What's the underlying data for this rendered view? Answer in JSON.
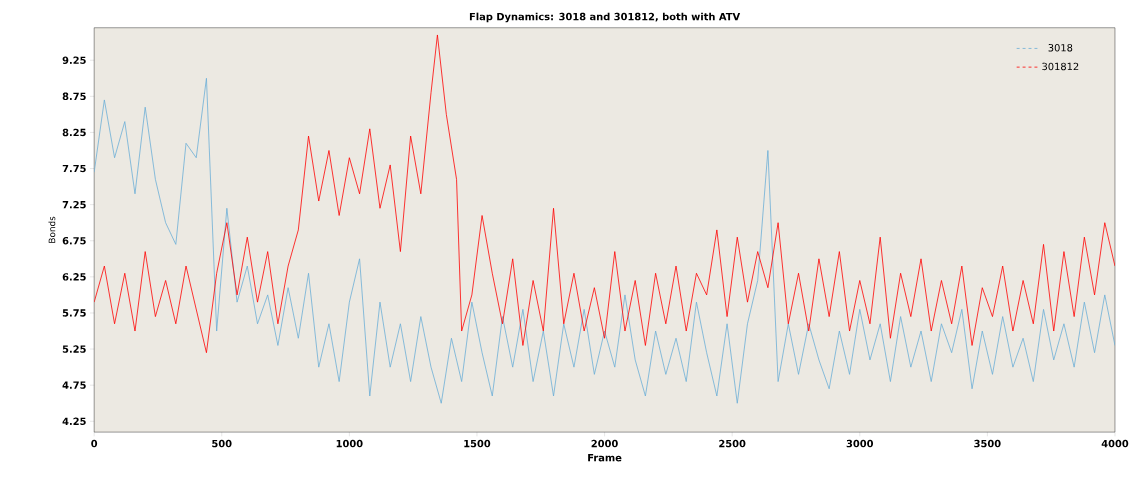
{
  "chart_data": {
    "type": "line",
    "title": "Flap Dynamics: 3018 and 301812, both with ATV",
    "xlabel": "Frame",
    "ylabel": "Bonds",
    "xlim": [
      0,
      4000
    ],
    "ylim": [
      4.1,
      9.7
    ],
    "xticks": [
      0,
      500,
      1000,
      1500,
      2000,
      2500,
      3000,
      3500,
      4000
    ],
    "yticks": [
      4.25,
      4.75,
      5.25,
      5.75,
      6.25,
      6.75,
      7.25,
      7.75,
      8.25,
      8.75,
      9.25
    ],
    "grid": false,
    "legend": "top right",
    "series": [
      {
        "name": "3018",
        "color": "#6baed6",
        "x": [
          0,
          40,
          80,
          120,
          160,
          200,
          240,
          280,
          320,
          360,
          400,
          440,
          480,
          520,
          560,
          600,
          640,
          680,
          720,
          760,
          800,
          840,
          880,
          920,
          960,
          1000,
          1040,
          1080,
          1120,
          1160,
          1200,
          1240,
          1280,
          1320,
          1360,
          1400,
          1440,
          1480,
          1520,
          1560,
          1600,
          1640,
          1680,
          1720,
          1760,
          1800,
          1840,
          1880,
          1920,
          1960,
          2000,
          2040,
          2080,
          2120,
          2160,
          2200,
          2240,
          2280,
          2320,
          2360,
          2400,
          2440,
          2480,
          2520,
          2560,
          2600,
          2640,
          2680,
          2720,
          2760,
          2800,
          2840,
          2880,
          2920,
          2960,
          3000,
          3040,
          3080,
          3120,
          3160,
          3200,
          3240,
          3280,
          3320,
          3360,
          3400,
          3440,
          3480,
          3520,
          3560,
          3600,
          3640,
          3680,
          3720,
          3760,
          3800,
          3840,
          3880,
          3920,
          3960,
          4000
        ],
        "values": [
          7.7,
          8.7,
          7.9,
          8.4,
          7.4,
          8.6,
          7.6,
          7.0,
          6.7,
          8.1,
          7.9,
          9.0,
          5.5,
          7.2,
          5.9,
          6.4,
          5.6,
          6.0,
          5.3,
          6.1,
          5.4,
          6.3,
          5.0,
          5.6,
          4.8,
          5.9,
          6.5,
          4.6,
          5.9,
          5.0,
          5.6,
          4.8,
          5.7,
          5.0,
          4.5,
          5.4,
          4.8,
          5.9,
          5.2,
          4.6,
          5.7,
          5.0,
          5.8,
          4.8,
          5.5,
          4.6,
          5.6,
          5.0,
          5.8,
          4.9,
          5.5,
          5.0,
          6.0,
          5.1,
          4.6,
          5.5,
          4.9,
          5.4,
          4.8,
          5.9,
          5.2,
          4.6,
          5.6,
          4.5,
          5.6,
          6.2,
          8.0,
          4.8,
          5.6,
          4.9,
          5.6,
          5.1,
          4.7,
          5.5,
          4.9,
          5.8,
          5.1,
          5.6,
          4.8,
          5.7,
          5.0,
          5.5,
          4.8,
          5.6,
          5.2,
          5.8,
          4.7,
          5.5,
          4.9,
          5.7,
          5.0,
          5.4,
          4.8,
          5.8,
          5.1,
          5.6,
          5.0,
          5.9,
          5.2,
          6.0,
          5.3
        ]
      },
      {
        "name": "301812",
        "color": "#ff0000",
        "x": [
          0,
          40,
          80,
          120,
          160,
          200,
          240,
          280,
          320,
          360,
          400,
          440,
          480,
          520,
          560,
          600,
          640,
          680,
          720,
          760,
          800,
          840,
          880,
          920,
          960,
          1000,
          1040,
          1080,
          1120,
          1160,
          1200,
          1240,
          1280,
          1320,
          1345,
          1380,
          1420,
          1440,
          1480,
          1520,
          1560,
          1600,
          1640,
          1680,
          1720,
          1760,
          1800,
          1840,
          1880,
          1920,
          1960,
          2000,
          2040,
          2080,
          2120,
          2160,
          2200,
          2240,
          2280,
          2320,
          2360,
          2400,
          2440,
          2480,
          2520,
          2560,
          2600,
          2640,
          2680,
          2720,
          2760,
          2800,
          2840,
          2880,
          2920,
          2960,
          3000,
          3040,
          3080,
          3120,
          3160,
          3200,
          3240,
          3280,
          3320,
          3360,
          3400,
          3440,
          3480,
          3520,
          3560,
          3600,
          3640,
          3680,
          3720,
          3760,
          3800,
          3840,
          3880,
          3920,
          3960,
          4000
        ],
        "values": [
          5.9,
          6.4,
          5.6,
          6.3,
          5.5,
          6.6,
          5.7,
          6.2,
          5.6,
          6.4,
          5.8,
          5.2,
          6.3,
          7.0,
          6.0,
          6.8,
          5.9,
          6.6,
          5.6,
          6.4,
          6.9,
          8.2,
          7.3,
          8.0,
          7.1,
          7.9,
          7.4,
          8.3,
          7.2,
          7.8,
          6.6,
          8.2,
          7.4,
          8.8,
          9.6,
          8.5,
          7.6,
          5.5,
          6.0,
          7.1,
          6.3,
          5.6,
          6.5,
          5.3,
          6.2,
          5.5,
          7.2,
          5.6,
          6.3,
          5.5,
          6.1,
          5.4,
          6.6,
          5.5,
          6.2,
          5.3,
          6.3,
          5.6,
          6.4,
          5.5,
          6.3,
          6.0,
          6.9,
          5.7,
          6.8,
          5.9,
          6.6,
          6.1,
          7.0,
          5.6,
          6.3,
          5.5,
          6.5,
          5.7,
          6.6,
          5.5,
          6.2,
          5.6,
          6.8,
          5.4,
          6.3,
          5.7,
          6.5,
          5.5,
          6.2,
          5.6,
          6.4,
          5.3,
          6.1,
          5.7,
          6.4,
          5.5,
          6.2,
          5.6,
          6.7,
          5.5,
          6.6,
          5.7,
          6.8,
          6.0,
          7.0,
          6.4
        ]
      }
    ]
  }
}
